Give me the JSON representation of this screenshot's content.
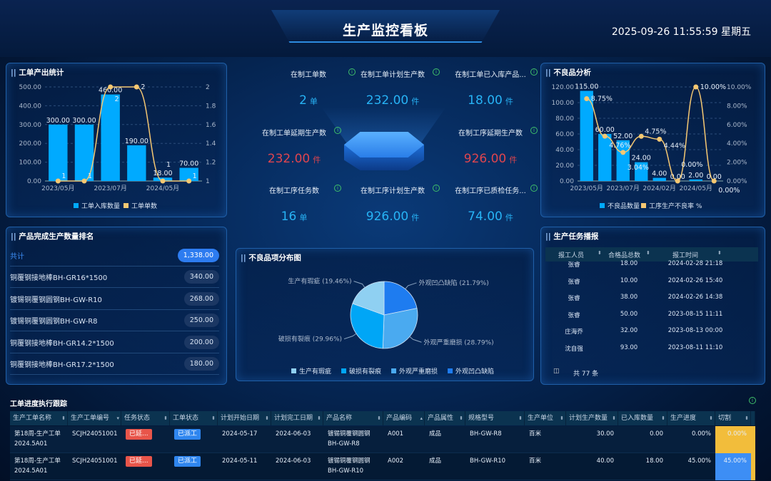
{
  "header": {
    "title": "生产监控看板",
    "datetime": "2025-09-26 11:55:59 星期五"
  },
  "output_stats": {
    "title": "工单产出统计"
  },
  "ranking": {
    "title": "产品完成生产数量排名",
    "total_label": "共计",
    "total_value": "1,338.00",
    "items": [
      {
        "name": "铜覆钢接地棒BH-GR16*1500",
        "value": "340.00"
      },
      {
        "name": "镀锡铜覆钢圆钢BH-GW-R10",
        "value": "268.00"
      },
      {
        "name": "镀锡铜覆钢圆钢BH-GW-R8",
        "value": "250.00"
      },
      {
        "name": "铜覆钢接地棒BH-GR14.2*1500",
        "value": "200.00"
      },
      {
        "name": "铜覆钢接地棒BH-GR17.2*1500",
        "value": "180.00"
      }
    ]
  },
  "stats": [
    {
      "label": "在制工单数",
      "value": "2",
      "unit": "单",
      "color": "#27b3f5"
    },
    {
      "label": "在制工单计划生产数",
      "value": "232.00",
      "unit": "件",
      "color": "#27b3f5"
    },
    {
      "label": "在制工单已入库产品...",
      "value": "18.00",
      "unit": "件",
      "color": "#27b3f5"
    },
    {
      "label": "在制工单延期生产数",
      "value": "232.00",
      "unit": "件",
      "color": "#e0454e"
    },
    {
      "label": "在制工序延期生产数",
      "value": "926.00",
      "unit": "件",
      "color": "#e0454e"
    },
    {
      "label": "在制工序任务数",
      "value": "16",
      "unit": "单",
      "color": "#27b3f5"
    },
    {
      "label": "在制工序计划生产数",
      "value": "926.00",
      "unit": "件",
      "color": "#27b3f5"
    },
    {
      "label": "在制工序已质检任务...",
      "value": "74.00",
      "unit": "件",
      "color": "#27b3f5"
    }
  ],
  "defect_dist": {
    "title": "不良品项分布图"
  },
  "defect_analysis": {
    "title": "不良品分析"
  },
  "task_report": {
    "title": "生产任务播报",
    "headers": [
      "报工人员",
      "合格品总数",
      "报工时间"
    ],
    "rows": [
      [
        "张睿",
        "18.00",
        "2024-02-28 21:18"
      ],
      [
        "张睿",
        "10.00",
        "2024-02-26 15:40"
      ],
      [
        "张睿",
        "38.00",
        "2024-02-26 14:38"
      ],
      [
        "张睿",
        "50.00",
        "2023-08-15 11:11"
      ],
      [
        "庄海乔",
        "32.00",
        "2023-08-13 00:00"
      ],
      [
        "沈自强",
        "93.00",
        "2023-08-11 11:10"
      ]
    ],
    "total": "共 77 条"
  },
  "tracking": {
    "title": "工单进度执行跟踪",
    "headers": [
      "生产工单名称",
      "生产工单编号",
      "任务状态",
      "工单状态",
      "计划开始日期",
      "计划完工日期",
      "产品名称",
      "产品编码",
      "产品属性",
      "规格型号",
      "生产单位",
      "计划生产数量",
      "已入库数量",
      "生产进度",
      "切割"
    ],
    "rows": [
      {
        "name": "第18周-生产工单",
        "name2": "2024.5A01",
        "code": "SCJH24051001",
        "task_status": "已延...",
        "order_status": "已派工",
        "start": "2024-05-17",
        "end": "2024-06-03",
        "product": "镀锡铜覆钢圆钢",
        "product2": "BH-GW-R8",
        "pcode": "A001",
        "attr": "成品",
        "spec": "BH-GW-R8",
        "unit": "百米",
        "plan": "30.00",
        "stored": "0.00",
        "progress": "0.00%",
        "cut": "0.00%",
        "cut_color": "#f2bd3b"
      },
      {
        "name": "第18周-生产工单",
        "name2": "2024.5A01",
        "code": "SCJH24051001",
        "task_status": "已延...",
        "order_status": "已派工",
        "start": "2024-05-11",
        "end": "2024-06-03",
        "product": "镀锡铜覆钢圆钢",
        "product2": "BH-GW-R10",
        "pcode": "A002",
        "attr": "成品",
        "spec": "BH-GW-R10",
        "unit": "百米",
        "plan": "40.00",
        "stored": "18.00",
        "progress": "45.00%",
        "cut": "45.00%",
        "cut_color": "#3d8ef5"
      }
    ]
  },
  "colors": {
    "bar": "#00aaff",
    "line": "#f5c872",
    "task_red": "#e8554a",
    "order_blue": "#2f86ef"
  },
  "chart_data": [
    {
      "type": "bar",
      "title": "工单产出统计",
      "categories": [
        "2023/05月",
        "",
        "2023/07月",
        "",
        "2024/05月",
        ""
      ],
      "series": [
        {
          "name": "工单入库数量",
          "type": "bar",
          "axis": "left",
          "values": [
            300,
            300,
            460,
            190,
            18,
            70
          ],
          "labels": [
            "300.00",
            "300.00",
            "460.00",
            "190.00",
            "18.00",
            "70.00"
          ]
        },
        {
          "name": "工单单数",
          "type": "line",
          "axis": "right",
          "values": [
            1,
            1,
            2,
            2,
            1,
            1
          ],
          "labels": [
            "1",
            "1",
            "2",
            "2",
            "1",
            "1"
          ]
        }
      ],
      "ylim": [
        0,
        500
      ],
      "yticks": [
        "0.00",
        "100.00",
        "200.00",
        "300.00",
        "400.00",
        "500.00"
      ],
      "y2lim": [
        1,
        2
      ],
      "y2ticks": [
        "1",
        "1.2",
        "1.4",
        "1.6",
        "1.8",
        "2"
      ],
      "grid": true,
      "legend": "bottom"
    },
    {
      "type": "bar",
      "title": "不良品分析",
      "categories": [
        "2023/05月",
        "",
        "2023/07月",
        "",
        "2024/02月",
        "",
        "2024/05月",
        ""
      ],
      "series": [
        {
          "name": "不良品数量",
          "type": "bar",
          "axis": "left",
          "values": [
            115,
            60,
            52,
            24,
            4,
            0,
            2,
            0
          ],
          "labels": [
            "115.00",
            "60.00",
            "52.00",
            "24.00",
            "4.00",
            "0.00",
            "2.00",
            "0.00"
          ]
        },
        {
          "name": "工序生产不良率 %",
          "type": "line",
          "axis": "right",
          "values": [
            8.75,
            4.76,
            3.04,
            4.75,
            4.44,
            0,
            10,
            0
          ],
          "labels": [
            "8.75%",
            "4.76%",
            "3.04%",
            "4.75%",
            "4.44%",
            "0.00%",
            "10.00%",
            "0.00%"
          ]
        }
      ],
      "ylim": [
        0,
        120
      ],
      "yticks": [
        "0.00",
        "20.00",
        "40.00",
        "60.00",
        "80.00",
        "100.00",
        "120.00"
      ],
      "y2lim": [
        0,
        10
      ],
      "y2ticks": [
        "0.00%",
        "2.00%",
        "4.00%",
        "6.00%",
        "8.00%",
        "10.00%"
      ],
      "grid": true,
      "legend": "bottom"
    },
    {
      "type": "pie",
      "title": "不良品项分布图",
      "slices": [
        {
          "name": "外观凹凸缺陷",
          "value": 21.79,
          "label": "外观凹凸缺陷 (21.79%)",
          "color": "#1e7cf0"
        },
        {
          "name": "外观严重磨损",
          "value": 28.79,
          "label": "外观严重磨损 (28.79%)",
          "color": "#4aaaf0"
        },
        {
          "name": "破损有裂痕",
          "value": 29.96,
          "label": "破损有裂痕 (29.96%)",
          "color": "#00a6f6"
        },
        {
          "name": "生产有瑕疵",
          "value": 19.46,
          "label": "生产有瑕疵 (19.46%)",
          "color": "#8fd0f2"
        }
      ],
      "legend_order": [
        "生产有瑕疵",
        "破损有裂痕",
        "外观严重磨损",
        "外观凹凸缺陷"
      ],
      "legend": "bottom"
    }
  ]
}
